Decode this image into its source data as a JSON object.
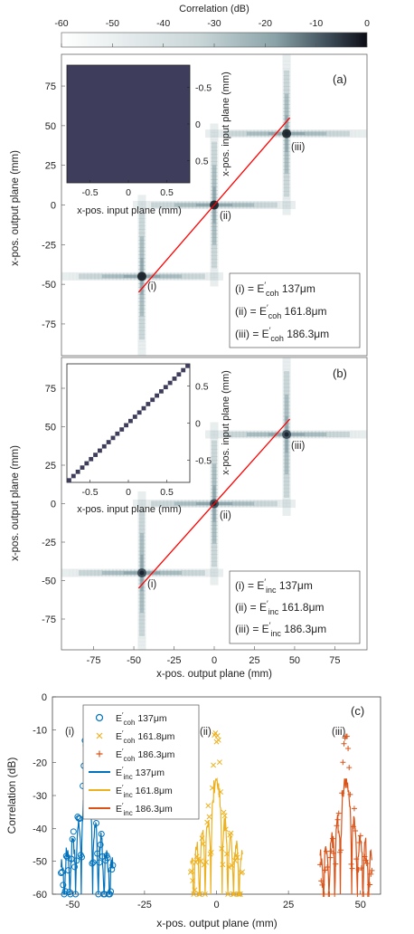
{
  "colorbar": {
    "label": "Correlation (dB)",
    "ticks": [
      -60,
      -50,
      -40,
      -30,
      -20,
      -10,
      0
    ],
    "colors": {
      "low": "#ffffff",
      "mid": "#8aa3a8",
      "high": "#0c0c14"
    }
  },
  "panel_a": {
    "tag": "(a)",
    "ylabel": "x-pos. output plane (mm)",
    "yticks": [
      "75",
      "50",
      "25",
      "0",
      "-25",
      "-50",
      "-75"
    ],
    "inset": {
      "xlabel": "x-pos. input plane (mm)",
      "ylabel": "x-pos. input plane (mm)",
      "xticks": [
        "-0.5",
        "0",
        "0.5"
      ],
      "yticks": [
        "-0.5",
        "0",
        "0.5"
      ],
      "fill": "#3e3e5c"
    },
    "labels": [
      "(i)",
      "(ii)",
      "(iii)"
    ],
    "legend": [
      {
        "lhs": "(i) = ",
        "E": "E",
        "prime": "′",
        "sub": "coh",
        "value": " 137μm"
      },
      {
        "lhs": "(ii) = ",
        "E": "E",
        "prime": "′",
        "sub": "coh",
        "value": " 161.8μm"
      },
      {
        "lhs": "(iii) = ",
        "E": "E",
        "prime": "′",
        "sub": "coh",
        "value": " 186.3μm"
      }
    ]
  },
  "panel_b": {
    "tag": "(b)",
    "ylabel": "x-pos. output plane (mm)",
    "xlabel": "x-pos. output plane (mm)",
    "yticks": [
      "75",
      "50",
      "25",
      "0",
      "-25",
      "-50",
      "-75"
    ],
    "xticks": [
      "-75",
      "-50",
      "-25",
      "0",
      "25",
      "50",
      "75"
    ],
    "inset": {
      "xlabel": "x-pos. input plane (mm)",
      "ylabel": "x-pos. input plane (mm)",
      "xticks": [
        "-0.5",
        "0",
        "0.5"
      ],
      "yticks": [
        "0.5",
        "0",
        "-0.5"
      ],
      "diag_color": "#3e3e5c"
    },
    "labels": [
      "(i)",
      "(ii)",
      "(iii)"
    ],
    "legend": [
      {
        "lhs": "(i) = ",
        "E": "E",
        "prime": "′",
        "sub": "inc",
        "value": " 137μm"
      },
      {
        "lhs": "(ii) = ",
        "E": "E",
        "prime": "′",
        "sub": "inc",
        "value": " 161.8μm"
      },
      {
        "lhs": "(iii) = ",
        "E": "E",
        "prime": "′",
        "sub": "inc",
        "value": " 186.3μm"
      }
    ]
  },
  "panel_c": {
    "tag": "(c)",
    "ylabel": "Correlation (dB)",
    "xlabel": "x-pos. output plane (mm)",
    "yticks": [
      "0",
      "-10",
      "-20",
      "-30",
      "-40",
      "-50",
      "-60"
    ],
    "xticks": [
      "-50",
      "-25",
      "0",
      "25",
      "50"
    ],
    "peak_labels": [
      "(i)",
      "(ii)",
      "(iii)"
    ],
    "legend": [
      {
        "marker": "o",
        "E": "E",
        "prime": "′",
        "sub": "coh",
        "value": " 137μm",
        "color": "#0072bd"
      },
      {
        "marker": "x",
        "E": "E",
        "prime": "′",
        "sub": "coh",
        "value": " 161.8μm",
        "color": "#edb120"
      },
      {
        "marker": "+",
        "E": "E",
        "prime": "′",
        "sub": "coh",
        "value": " 186.3μm",
        "color": "#d95319"
      },
      {
        "marker": "line",
        "E": "E",
        "prime": "′",
        "sub": "inc",
        "value": " 137μm",
        "color": "#0072bd"
      },
      {
        "marker": "line",
        "E": "E",
        "prime": "′",
        "sub": "inc",
        "value": " 161.8μm",
        "color": "#edb120"
      },
      {
        "marker": "line",
        "E": "E",
        "prime": "′",
        "sub": "inc",
        "value": " 186.3μm",
        "color": "#d95319"
      }
    ]
  },
  "chart_data": [
    {
      "type": "heatmap",
      "tag": "(a)",
      "xlim": [
        -95,
        95
      ],
      "ylim": [
        -95,
        95
      ],
      "ylabel": "x-pos. output plane (mm)",
      "diagonal_fit": [
        [
          -47,
          -55
        ],
        [
          47,
          55
        ]
      ],
      "diagonal_color": "#ff0000",
      "peaks": [
        {
          "label": "(i)",
          "x": -45,
          "y": -45,
          "peak_db": -11
        },
        {
          "label": "(ii)",
          "x": 0,
          "y": 0,
          "peak_db": -12
        },
        {
          "label": "(iii)",
          "x": 45,
          "y": 45,
          "peak_db": -13
        }
      ],
      "colorbar_range_db": [
        -60,
        0
      ],
      "inset": {
        "type": "heatmap",
        "xlim": [
          -0.8,
          0.8
        ],
        "ylim": [
          -0.8,
          0.8
        ],
        "uniform_db": -22
      }
    },
    {
      "type": "heatmap",
      "tag": "(b)",
      "xlim": [
        -95,
        95
      ],
      "ylim": [
        -95,
        95
      ],
      "xlabel": "x-pos. output plane (mm)",
      "ylabel": "x-pos. output plane (mm)",
      "diagonal_fit": [
        [
          -47,
          -55
        ],
        [
          47,
          55
        ]
      ],
      "diagonal_color": "#ff0000",
      "peaks": [
        {
          "label": "(i)",
          "x": -45,
          "y": -45,
          "peak_db": -26
        },
        {
          "label": "(ii)",
          "x": 0,
          "y": 0,
          "peak_db": -27
        },
        {
          "label": "(iii)",
          "x": 45,
          "y": 45,
          "peak_db": -28
        }
      ],
      "colorbar_range_db": [
        -60,
        0
      ],
      "inset": {
        "type": "heatmap",
        "xlim": [
          -0.8,
          0.8
        ],
        "ylim": [
          -0.8,
          0.8
        ],
        "pattern": "diagonal"
      }
    },
    {
      "type": "line",
      "tag": "(c)",
      "xlim": [
        -57,
        57
      ],
      "ylim": [
        -60,
        0
      ],
      "xlabel": "x-pos. output plane (mm)",
      "ylabel": "Correlation (dB)",
      "series": [
        {
          "name": "E′coh 137μm",
          "kind": "markers-o",
          "center": -45,
          "peak": -11,
          "width": 1.8,
          "color": "#0072bd"
        },
        {
          "name": "E′coh 161.8μm",
          "kind": "markers-x",
          "center": 0,
          "peak": -11,
          "width": 1.8,
          "color": "#edb120"
        },
        {
          "name": "E′coh 186.3μm",
          "kind": "markers-+",
          "center": 45,
          "peak": -12,
          "width": 1.8,
          "color": "#d95319"
        },
        {
          "name": "E′inc 137μm",
          "kind": "line",
          "center": -45,
          "peak": -26,
          "width": 3.2,
          "color": "#0072bd"
        },
        {
          "name": "E′inc 161.8μm",
          "kind": "line",
          "center": 0,
          "peak": -25,
          "width": 3.2,
          "color": "#edb120"
        },
        {
          "name": "E′inc 186.3μm",
          "kind": "line",
          "center": 45,
          "peak": -25,
          "width": 3.2,
          "color": "#d95319"
        }
      ]
    }
  ]
}
